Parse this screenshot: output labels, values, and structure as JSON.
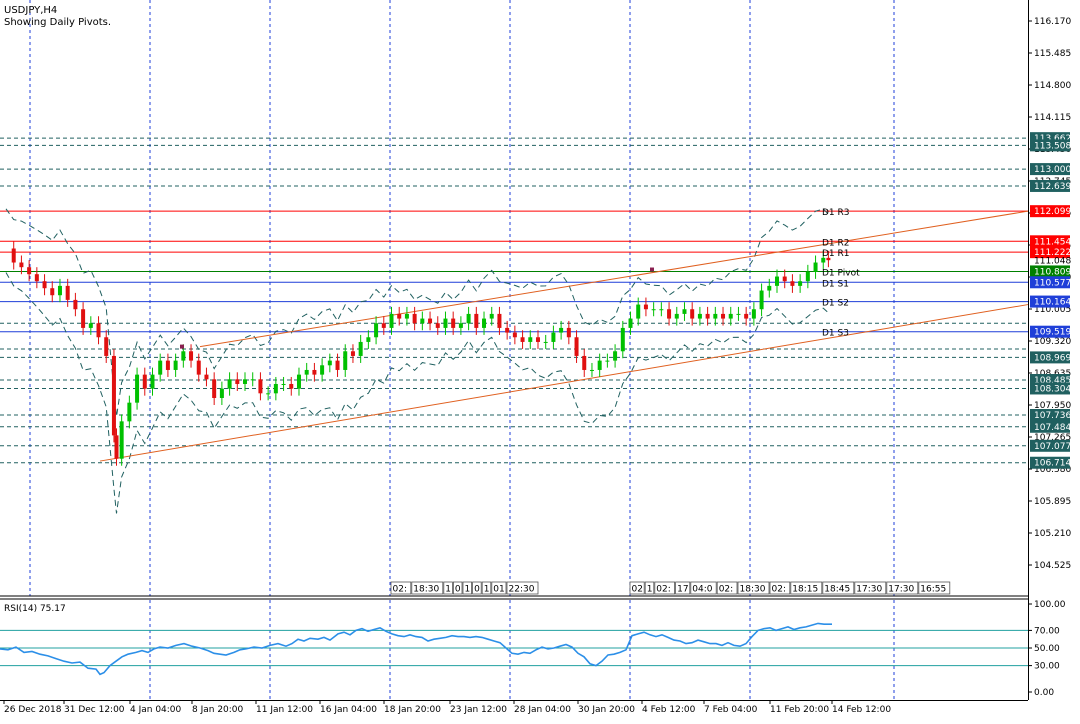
{
  "header": {
    "symbol": "USDJPY,H4",
    "subtitle": "Showing Daily Pivots."
  },
  "rsi_panel": {
    "label": "RSI(14) 75.17"
  },
  "colors": {
    "bull": "#00c000",
    "bear": "#e01010",
    "grid": "#1f3fd8",
    "pivot_line": "#1f3fd8",
    "resistance": "#ff0000",
    "pivot_center": "#008000",
    "channel": "#e06020",
    "envelope": "#206060",
    "rsi_line": "#2c8fe8",
    "rsi_level": "#20a0a0"
  },
  "chart_data": [
    {
      "type": "candlestick",
      "title": "USDJPY,H4",
      "subtitle": "Showing Daily Pivots.",
      "ylim": [
        104.1,
        116.6
      ],
      "y_ticks": [
        "116.170",
        "115.485",
        "114.800",
        "114.115",
        "113.430",
        "112.745",
        "112.060",
        "111.375",
        "110.690",
        "110.005",
        "109.320",
        "108.635",
        "107.950",
        "107.265",
        "106.580",
        "105.895",
        "105.210",
        "104.525"
      ],
      "x_tick_labels": [
        "26 Dec 2018",
        "31 Dec 12:00",
        "4 Jan 04:00",
        "8 Jan 20:00",
        "11 Jan 12:00",
        "16 Jan 04:00",
        "18 Jan 20:00",
        "23 Jan 12:00",
        "28 Jan 04:00",
        "30 Jan 20:00",
        "4 Feb 12:00",
        "7 Feb 04:00",
        "11 Feb 20:00",
        "14 Feb 12:00"
      ],
      "pivots": [
        {
          "name": "D1 R3",
          "value": 112.099,
          "kind": "resistance"
        },
        {
          "name": "D1 R2",
          "value": 111.454,
          "kind": "resistance"
        },
        {
          "name": "D1 R1",
          "value": 111.222,
          "kind": "resistance"
        },
        {
          "name": "D1 Pivot",
          "value": 110.809,
          "kind": "pivot"
        },
        {
          "name": "D1 S1",
          "value": 110.577,
          "kind": "support"
        },
        {
          "name": "D1 S2",
          "value": 110.164,
          "kind": "support"
        },
        {
          "name": "D1 S3",
          "value": 109.519,
          "kind": "support"
        }
      ],
      "price_tags": [
        {
          "value": 113.662,
          "text": "113.662",
          "style": "dotted"
        },
        {
          "value": 113.508,
          "text": "113.508",
          "style": "dotted"
        },
        {
          "value": 113.0,
          "text": "113.000",
          "style": "dotted"
        },
        {
          "value": 112.639,
          "text": "112.639",
          "style": "dotted"
        },
        {
          "value": 112.099,
          "text": "112.099",
          "style": "red"
        },
        {
          "value": 111.454,
          "text": "111.454",
          "style": "red"
        },
        {
          "value": 111.222,
          "text": "111.222",
          "style": "red"
        },
        {
          "value": 111.048,
          "text": "111.048",
          "style": "plain"
        },
        {
          "value": 110.809,
          "text": "110.809",
          "style": "green"
        },
        {
          "value": 110.577,
          "text": "110.577",
          "style": "blue"
        },
        {
          "value": 110.164,
          "text": "110.164",
          "style": "blue"
        },
        {
          "value": 109.519,
          "text": "109.519",
          "style": "blue"
        },
        {
          "value": 108.969,
          "text": "108.969",
          "style": "dotted"
        },
        {
          "value": 108.485,
          "text": "108.485",
          "style": "dotted"
        },
        {
          "value": 108.304,
          "text": "108.304",
          "style": "dotted"
        },
        {
          "value": 107.736,
          "text": "107.736",
          "style": "dotted"
        },
        {
          "value": 107.484,
          "text": "107.484",
          "style": "dotted"
        },
        {
          "value": 107.077,
          "text": "107.077",
          "style": "dotted"
        },
        {
          "value": 106.714,
          "text": "106.714",
          "style": "dotted"
        }
      ],
      "extra_dotted_levels": [
        109.7,
        109.15
      ],
      "price_path": [
        [
          0,
          111.3
        ],
        [
          6,
          111.0
        ],
        [
          12,
          110.9
        ],
        [
          18,
          110.75
        ],
        [
          24,
          110.6
        ],
        [
          30,
          110.45
        ],
        [
          36,
          110.3
        ],
        [
          42,
          110.5
        ],
        [
          48,
          110.2
        ],
        [
          54,
          110.0
        ],
        [
          60,
          109.6
        ],
        [
          66,
          109.7
        ],
        [
          72,
          109.4
        ],
        [
          78,
          109.0
        ],
        [
          84,
          107.3
        ],
        [
          86,
          106.8
        ],
        [
          90,
          107.6
        ],
        [
          96,
          108.0
        ],
        [
          102,
          108.6
        ],
        [
          108,
          108.3
        ],
        [
          114,
          108.6
        ],
        [
          120,
          108.9
        ],
        [
          126,
          108.7
        ],
        [
          132,
          108.9
        ],
        [
          138,
          109.1
        ],
        [
          144,
          108.9
        ],
        [
          150,
          108.6
        ],
        [
          156,
          108.5
        ],
        [
          162,
          108.1
        ],
        [
          168,
          108.3
        ],
        [
          174,
          108.5
        ],
        [
          180,
          108.4
        ],
        [
          186,
          108.5
        ],
        [
          192,
          108.5
        ],
        [
          198,
          108.2
        ],
        [
          204,
          108.2
        ],
        [
          210,
          108.4
        ],
        [
          216,
          108.4
        ],
        [
          222,
          108.3
        ],
        [
          228,
          108.6
        ],
        [
          234,
          108.7
        ],
        [
          240,
          108.6
        ],
        [
          246,
          108.8
        ],
        [
          252,
          108.9
        ],
        [
          258,
          108.7
        ],
        [
          264,
          109.1
        ],
        [
          270,
          109.0
        ],
        [
          276,
          109.3
        ],
        [
          282,
          109.4
        ],
        [
          288,
          109.7
        ],
        [
          294,
          109.6
        ],
        [
          300,
          109.9
        ],
        [
          306,
          109.8
        ],
        [
          312,
          109.9
        ],
        [
          318,
          109.7
        ],
        [
          324,
          109.8
        ],
        [
          330,
          109.7
        ],
        [
          336,
          109.6
        ],
        [
          342,
          109.8
        ],
        [
          348,
          109.6
        ],
        [
          354,
          109.7
        ],
        [
          360,
          109.9
        ],
        [
          366,
          109.6
        ],
        [
          372,
          109.8
        ],
        [
          378,
          109.9
        ],
        [
          384,
          109.6
        ],
        [
          390,
          109.5
        ],
        [
          396,
          109.4
        ],
        [
          402,
          109.3
        ],
        [
          408,
          109.4
        ],
        [
          414,
          109.3
        ],
        [
          420,
          109.3
        ],
        [
          426,
          109.5
        ],
        [
          432,
          109.6
        ],
        [
          438,
          109.4
        ],
        [
          444,
          109.0
        ],
        [
          450,
          108.7
        ],
        [
          456,
          108.7
        ],
        [
          462,
          108.9
        ],
        [
          468,
          108.9
        ],
        [
          474,
          109.1
        ],
        [
          480,
          109.6
        ],
        [
          486,
          109.8
        ],
        [
          492,
          110.1
        ],
        [
          498,
          110.0
        ],
        [
          504,
          110.0
        ],
        [
          510,
          110.0
        ],
        [
          516,
          109.8
        ],
        [
          522,
          109.9
        ],
        [
          528,
          110.0
        ],
        [
          534,
          109.8
        ],
        [
          540,
          109.9
        ],
        [
          546,
          109.8
        ],
        [
          552,
          109.9
        ],
        [
          558,
          109.8
        ],
        [
          564,
          109.9
        ],
        [
          570,
          109.9
        ],
        [
          576,
          109.8
        ],
        [
          582,
          110.0
        ],
        [
          588,
          110.4
        ],
        [
          594,
          110.5
        ],
        [
          600,
          110.7
        ],
        [
          606,
          110.6
        ],
        [
          612,
          110.5
        ],
        [
          618,
          110.6
        ],
        [
          624,
          110.8
        ],
        [
          630,
          111.0
        ],
        [
          636,
          111.1
        ],
        [
          640,
          111.05
        ]
      ],
      "channel_lines": [
        {
          "from": [
            200,
            109.2
          ],
          "to": [
            1080,
            112.1
          ]
        },
        {
          "from": [
            100,
            106.75
          ],
          "to": [
            1080,
            110.1
          ]
        }
      ],
      "markers": [
        {
          "x": 182,
          "y": 109.2
        },
        {
          "x": 652,
          "y": 110.85
        }
      ],
      "tooltip_groups": [
        {
          "x": 391,
          "labels": [
            "02:",
            "18:30",
            "1",
            "0",
            "1",
            "0",
            "1",
            "01",
            "22:30"
          ]
        },
        {
          "x": 630,
          "labels": [
            "02",
            "1",
            "02:",
            "17",
            "04:0",
            "02:",
            "18:30",
            "02:",
            "18:15",
            "18:45",
            "17:30",
            "17:30",
            "16:55"
          ]
        }
      ]
    },
    {
      "type": "line",
      "title": "RSI(14) 75.17",
      "ylim": [
        0,
        100
      ],
      "y_ticks": [
        "100.00",
        "70.00",
        "50.00",
        "30.00",
        "0.00"
      ],
      "levels": [
        70,
        50,
        30
      ],
      "values": [
        [
          0,
          49
        ],
        [
          8,
          48
        ],
        [
          16,
          51
        ],
        [
          24,
          45
        ],
        [
          32,
          46
        ],
        [
          40,
          43
        ],
        [
          48,
          41
        ],
        [
          56,
          38
        ],
        [
          64,
          35
        ],
        [
          72,
          33
        ],
        [
          80,
          34
        ],
        [
          88,
          27
        ],
        [
          96,
          26
        ],
        [
          100,
          20
        ],
        [
          104,
          22
        ],
        [
          110,
          30
        ],
        [
          116,
          35
        ],
        [
          122,
          40
        ],
        [
          128,
          43
        ],
        [
          136,
          45
        ],
        [
          142,
          47
        ],
        [
          148,
          45
        ],
        [
          154,
          49
        ],
        [
          160,
          51
        ],
        [
          168,
          50
        ],
        [
          176,
          53
        ],
        [
          184,
          55
        ],
        [
          192,
          52
        ],
        [
          200,
          50
        ],
        [
          208,
          47
        ],
        [
          214,
          44
        ],
        [
          220,
          43
        ],
        [
          226,
          42
        ],
        [
          234,
          45
        ],
        [
          240,
          48
        ],
        [
          246,
          49
        ],
        [
          254,
          51
        ],
        [
          262,
          50
        ],
        [
          270,
          53
        ],
        [
          278,
          55
        ],
        [
          286,
          52
        ],
        [
          292,
          55
        ],
        [
          298,
          60
        ],
        [
          304,
          58
        ],
        [
          310,
          61
        ],
        [
          318,
          60
        ],
        [
          324,
          62
        ],
        [
          330,
          59
        ],
        [
          338,
          66
        ],
        [
          344,
          68
        ],
        [
          350,
          65
        ],
        [
          356,
          70
        ],
        [
          362,
          72
        ],
        [
          368,
          69
        ],
        [
          374,
          71
        ],
        [
          380,
          73
        ],
        [
          386,
          69
        ],
        [
          392,
          66
        ],
        [
          398,
          64
        ],
        [
          404,
          63
        ],
        [
          410,
          65
        ],
        [
          416,
          63
        ],
        [
          422,
          62
        ],
        [
          428,
          58
        ],
        [
          434,
          60
        ],
        [
          440,
          61
        ],
        [
          446,
          62
        ],
        [
          452,
          64
        ],
        [
          458,
          63
        ],
        [
          464,
          63
        ],
        [
          470,
          62
        ],
        [
          476,
          63
        ],
        [
          482,
          62
        ],
        [
          488,
          60
        ],
        [
          494,
          58
        ],
        [
          500,
          56
        ],
        [
          506,
          50
        ],
        [
          512,
          44
        ],
        [
          518,
          43
        ],
        [
          524,
          45
        ],
        [
          530,
          44
        ],
        [
          536,
          48
        ],
        [
          542,
          51
        ],
        [
          548,
          49
        ],
        [
          554,
          50
        ],
        [
          560,
          52
        ],
        [
          566,
          54
        ],
        [
          572,
          51
        ],
        [
          578,
          44
        ],
        [
          584,
          40
        ],
        [
          590,
          32
        ],
        [
          596,
          30
        ],
        [
          602,
          35
        ],
        [
          608,
          42
        ],
        [
          614,
          43
        ],
        [
          620,
          45
        ],
        [
          626,
          48
        ],
        [
          632,
          64
        ],
        [
          638,
          66
        ],
        [
          644,
          68
        ],
        [
          650,
          65
        ],
        [
          656,
          63
        ],
        [
          662,
          65
        ],
        [
          668,
          62
        ],
        [
          674,
          59
        ],
        [
          680,
          58
        ],
        [
          686,
          55
        ],
        [
          692,
          56
        ],
        [
          698,
          59
        ],
        [
          704,
          57
        ],
        [
          710,
          55
        ],
        [
          716,
          55
        ],
        [
          722,
          53
        ],
        [
          728,
          56
        ],
        [
          734,
          53
        ],
        [
          740,
          52
        ],
        [
          746,
          55
        ],
        [
          752,
          63
        ],
        [
          758,
          70
        ],
        [
          764,
          72
        ],
        [
          770,
          73
        ],
        [
          776,
          70
        ],
        [
          782,
          72
        ],
        [
          788,
          74
        ],
        [
          794,
          71
        ],
        [
          800,
          73
        ],
        [
          806,
          74
        ],
        [
          812,
          76
        ],
        [
          818,
          78
        ],
        [
          824,
          77
        ],
        [
          832,
          77
        ]
      ]
    }
  ]
}
